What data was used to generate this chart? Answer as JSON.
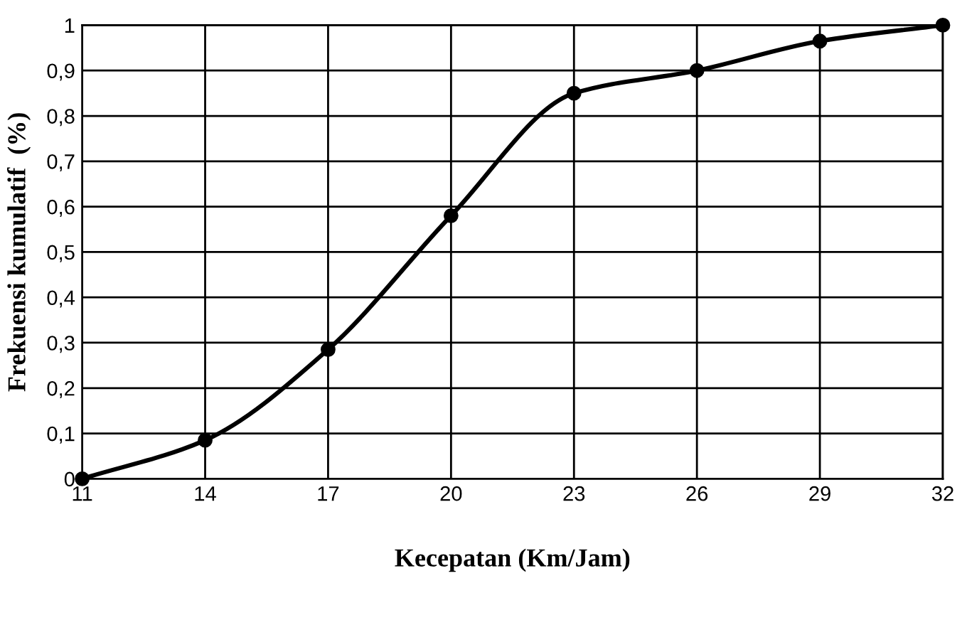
{
  "chart_data": {
    "type": "line",
    "xlabel": "Kecepatan (Km/Jam)",
    "ylabel": "Frekuensi kumulatif  (%)",
    "x": [
      11,
      14,
      17,
      20,
      23,
      26,
      29,
      32
    ],
    "series": [
      {
        "color": "#000000",
        "values": [
          0,
          0.085,
          0.285,
          0.58,
          0.85,
          0.9,
          0.965,
          1
        ]
      }
    ],
    "xlim": [
      11,
      32
    ],
    "xticks": [
      11,
      14,
      17,
      20,
      23,
      26,
      29,
      32
    ],
    "ylim": [
      0,
      1
    ],
    "yticks": [
      0,
      {
        "value": 0.1,
        "label": "0,1"
      },
      {
        "value": 0.2,
        "label": "0,2"
      },
      {
        "value": 0.3,
        "label": "0,3"
      },
      {
        "value": 0.4,
        "label": "0,4"
      },
      {
        "value": 0.5,
        "label": "0,5"
      },
      {
        "value": 0.6,
        "label": "0,6"
      },
      {
        "value": 0.7,
        "label": "0,7"
      },
      {
        "value": 0.8,
        "label": "0,8"
      },
      {
        "value": 0.9,
        "label": "0,9"
      },
      1
    ],
    "grid": true,
    "marker": "circle",
    "line_style": "solid"
  }
}
